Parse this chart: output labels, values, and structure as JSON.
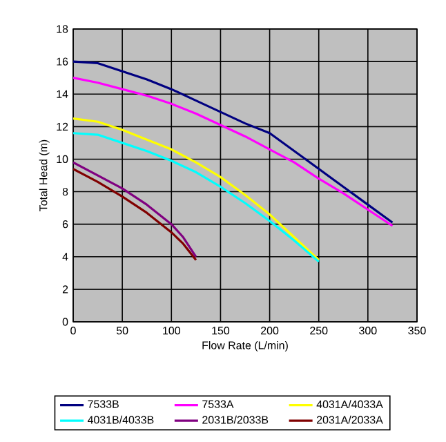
{
  "chart_data": {
    "type": "line",
    "xlabel": "Flow Rate (L/min)",
    "ylabel": "Total Head (m)",
    "xlim": [
      0,
      350
    ],
    "xticks": [
      0,
      50,
      100,
      150,
      200,
      250,
      300,
      350
    ],
    "ylim": [
      0,
      18
    ],
    "yticks": [
      0,
      2,
      4,
      6,
      8,
      10,
      12,
      14,
      16,
      18
    ],
    "grid": true,
    "legend": "bottom",
    "marker": "none",
    "line_style": "solid",
    "series": [
      {
        "name": "7533B",
        "color": "#000080",
        "x": [
          0,
          25,
          50,
          75,
          100,
          125,
          150,
          175,
          200,
          225,
          250,
          275,
          300,
          325
        ],
        "values": [
          16,
          15.9,
          15.4,
          14.9,
          14.3,
          13.6,
          12.9,
          12.2,
          11.6,
          10.5,
          9.4,
          8.3,
          7.2,
          6.1
        ]
      },
      {
        "name": "7533A",
        "color": "#ff00ff",
        "x": [
          0,
          25,
          50,
          75,
          100,
          125,
          150,
          175,
          200,
          225,
          250,
          275,
          300,
          325
        ],
        "values": [
          15,
          14.7,
          14.3,
          13.9,
          13.4,
          12.8,
          12.1,
          11.4,
          10.6,
          9.8,
          8.8,
          7.9,
          6.9,
          5.9
        ]
      },
      {
        "name": "4031A/4033A",
        "color": "#ffff00",
        "x": [
          0,
          25,
          50,
          75,
          100,
          125,
          150,
          175,
          200,
          225,
          250
        ],
        "values": [
          12.5,
          12.3,
          11.8,
          11.2,
          10.6,
          9.8,
          8.9,
          7.8,
          6.6,
          5.2,
          3.8
        ]
      },
      {
        "name": "4031B/4033B",
        "color": "#00ffff",
        "x": [
          0,
          25,
          50,
          75,
          100,
          125,
          150,
          175,
          200,
          225,
          250
        ],
        "values": [
          11.6,
          11.5,
          11.0,
          10.5,
          9.9,
          9.2,
          8.3,
          7.3,
          6.2,
          5.0,
          3.7
        ]
      },
      {
        "name": "2031B/2033B",
        "color": "#800080",
        "x": [
          0,
          25,
          50,
          75,
          100,
          112,
          125
        ],
        "values": [
          9.8,
          9.0,
          8.2,
          7.2,
          6.0,
          5.2,
          4.0
        ]
      },
      {
        "name": "2031A/2033A",
        "color": "#800000",
        "x": [
          0,
          25,
          50,
          75,
          100,
          112,
          125
        ],
        "values": [
          9.4,
          8.6,
          7.7,
          6.7,
          5.5,
          4.8,
          3.8
        ]
      }
    ]
  }
}
